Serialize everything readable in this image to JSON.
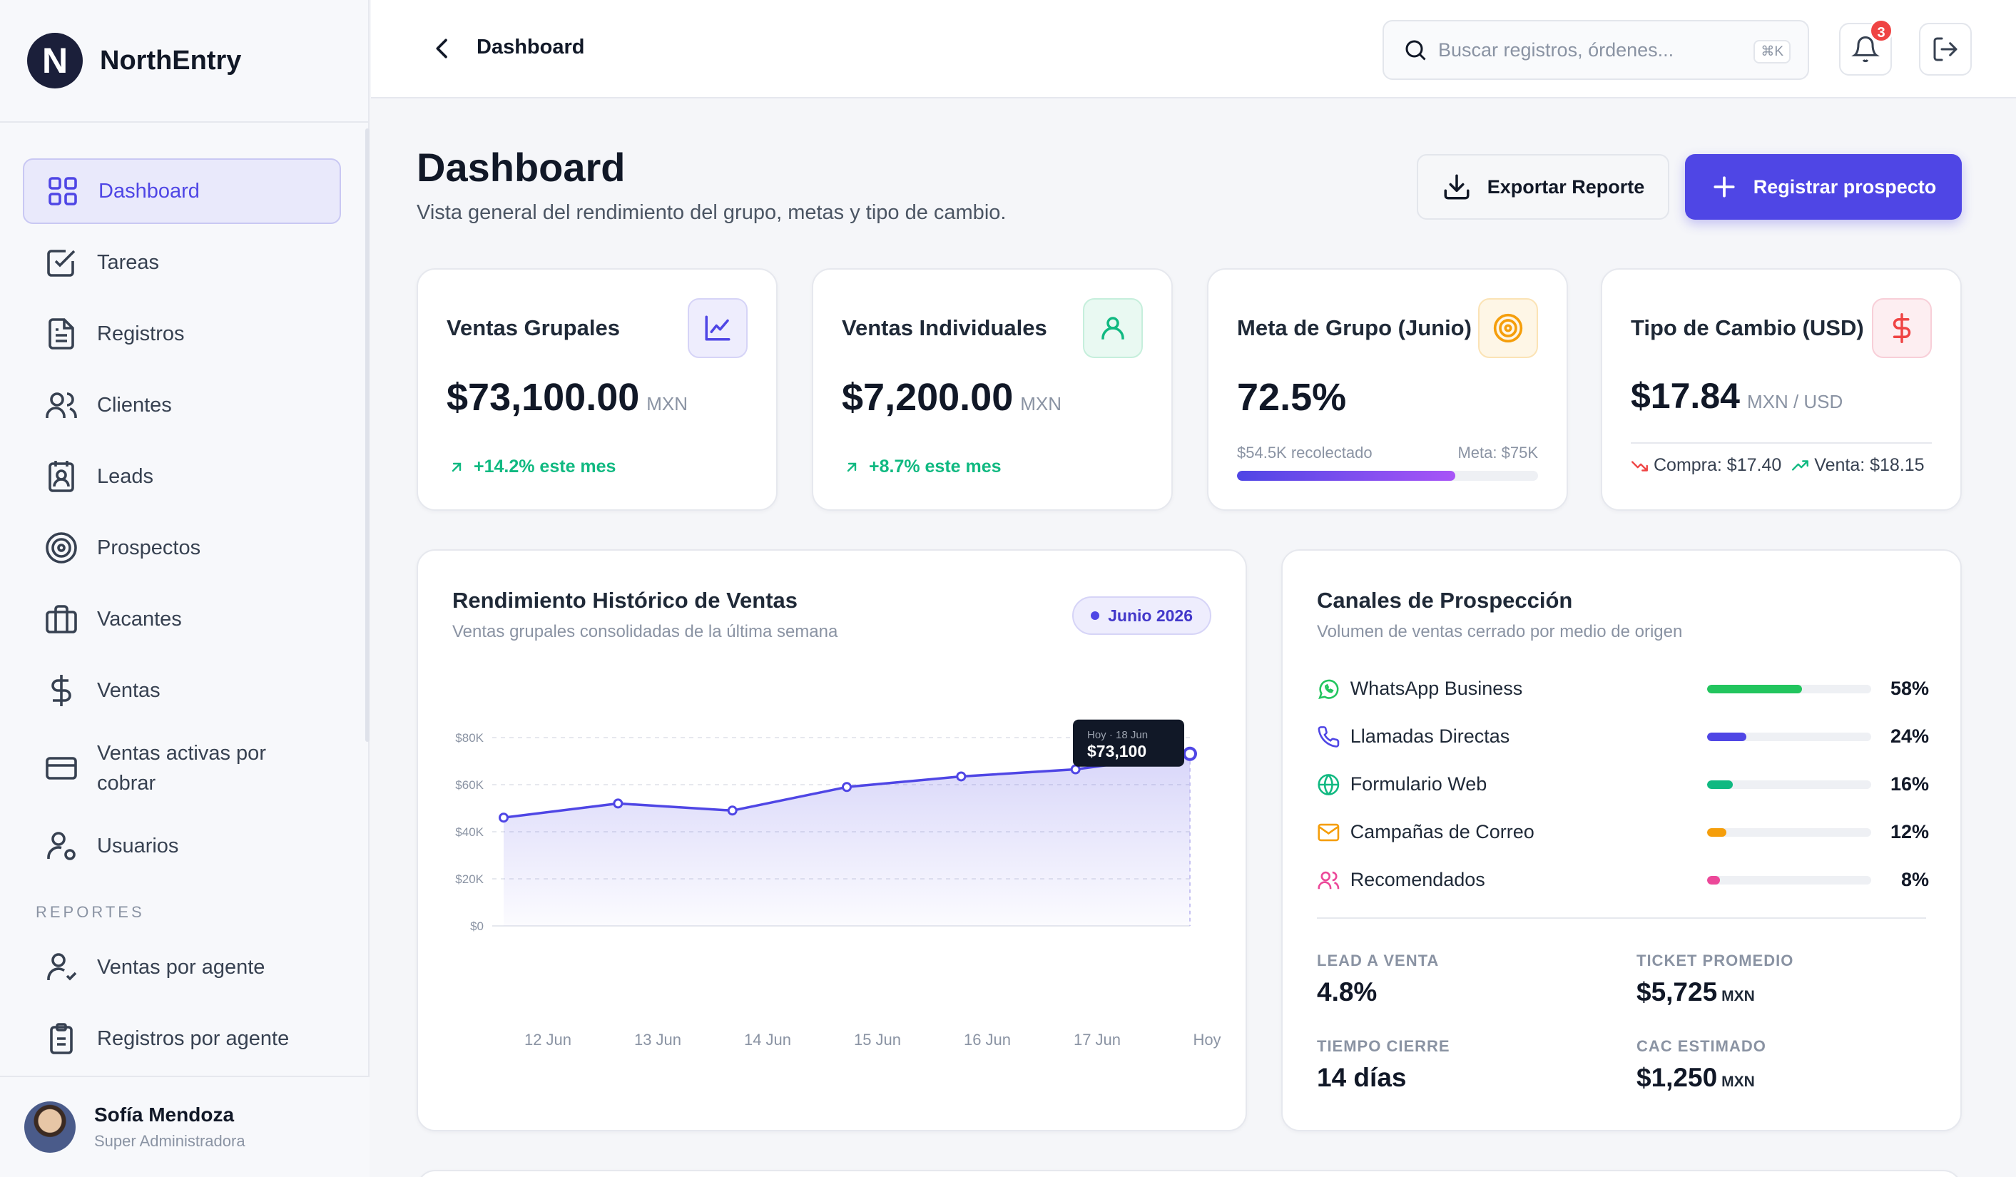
{
  "brand": {
    "name": "NorthEntry",
    "logo_letter": "N"
  },
  "sidebar": {
    "items": [
      {
        "label": "Dashboard",
        "icon": "grid-icon",
        "active": true
      },
      {
        "label": "Tareas",
        "icon": "checkbox-icon"
      },
      {
        "label": "Registros",
        "icon": "document-icon"
      },
      {
        "label": "Clientes",
        "icon": "users-icon"
      },
      {
        "label": "Leads",
        "icon": "contact-icon"
      },
      {
        "label": "Prospectos",
        "icon": "target-icon"
      },
      {
        "label": "Vacantes",
        "icon": "briefcase-icon"
      },
      {
        "label": "Ventas",
        "icon": "dollar-icon"
      },
      {
        "label": "Ventas activas por cobrar",
        "icon": "card-icon"
      },
      {
        "label": "Usuarios",
        "icon": "user-gear-icon"
      }
    ],
    "section_label": "REPORTES",
    "report_items": [
      {
        "label": "Ventas por agente",
        "icon": "user-check-icon"
      },
      {
        "label": "Registros por agente",
        "icon": "clipboard-icon"
      }
    ],
    "user": {
      "name": "Sofía Mendoza",
      "role": "Super Administradora"
    }
  },
  "header": {
    "breadcrumb": "Dashboard",
    "search_placeholder": "Buscar registros, órdenes...",
    "search_shortcut": "⌘K",
    "notification_count": "3"
  },
  "main": {
    "title": "Dashboard",
    "subtitle": "Vista general del rendimiento del grupo, metas y tipo de cambio.",
    "export_label": "Exportar Reporte",
    "primary_label": "Registrar prospecto"
  },
  "kpis": {
    "group_sales": {
      "title": "Ventas Grupales",
      "value": "$73,100.00",
      "unit": "MXN",
      "trend": "+14.2% este mes",
      "icon": "line-chart-icon"
    },
    "individual_sales": {
      "title": "Ventas Individuales",
      "value": "$7,200.00",
      "unit": "MXN",
      "trend": "+8.7% este mes",
      "icon": "user-icon"
    },
    "group_goal": {
      "title": "Meta de Grupo (Junio)",
      "value": "72.5%",
      "collected": "$54.5K recolectado",
      "goal": "Meta: $75K",
      "progress": 0.725,
      "icon": "target-icon"
    },
    "fx": {
      "title": "Tipo de Cambio (USD)",
      "value": "$17.84",
      "unit": "MXN / USD",
      "buy": "Compra: $17.40",
      "sell": "Venta: $18.15",
      "icon": "dollar-icon"
    }
  },
  "chart_card": {
    "title": "Rendimiento Histórico de Ventas",
    "subtitle": "Ventas grupales consolidadas de la última semana",
    "period_badge": "Junio 2026",
    "tooltip_label": "Hoy · 18 Jun",
    "tooltip_value": "$73,100"
  },
  "chart_data": {
    "type": "area",
    "title": "Rendimiento Histórico de Ventas",
    "categories": [
      "12 Jun",
      "13 Jun",
      "14 Jun",
      "15 Jun",
      "16 Jun",
      "17 Jun",
      "Hoy"
    ],
    "series": [
      {
        "values": [
          46000,
          52000,
          49000,
          59000,
          63500,
          66500,
          73100
        ]
      }
    ],
    "y_ticks": [
      "$0",
      "$20K",
      "$40K",
      "$60K",
      "$80K"
    ],
    "ylim": [
      0,
      80000
    ],
    "grid": true,
    "color": "#4f46e5"
  },
  "channels": {
    "title": "Canales de Prospección",
    "subtitle": "Volumen de ventas cerrado por medio de origen",
    "items": [
      {
        "name": "WhatsApp Business",
        "pct_label": "58%",
        "value": 0.58,
        "color": "#22c55e",
        "icon": "whatsapp-icon"
      },
      {
        "name": "Llamadas Directas",
        "pct_label": "24%",
        "value": 0.24,
        "color": "#4f46e5",
        "icon": "phone-icon"
      },
      {
        "name": "Formulario Web",
        "pct_label": "16%",
        "value": 0.16,
        "color": "#10b981",
        "icon": "globe-icon"
      },
      {
        "name": "Campañas de Correo",
        "pct_label": "12%",
        "value": 0.12,
        "color": "#f59e0b",
        "icon": "mail-icon"
      },
      {
        "name": "Recomendados",
        "pct_label": "8%",
        "value": 0.08,
        "color": "#ec4899",
        "icon": "users-icon"
      }
    ],
    "stats": [
      {
        "label": "LEAD A VENTA",
        "value": "4.8%",
        "unit": ""
      },
      {
        "label": "TICKET PROMEDIO",
        "value": "$5,725",
        "unit": "MXN"
      },
      {
        "label": "TIEMPO CIERRE",
        "value": "14 días",
        "unit": ""
      },
      {
        "label": "CAC ESTIMADO",
        "value": "$1,250",
        "unit": "MXN"
      }
    ]
  }
}
